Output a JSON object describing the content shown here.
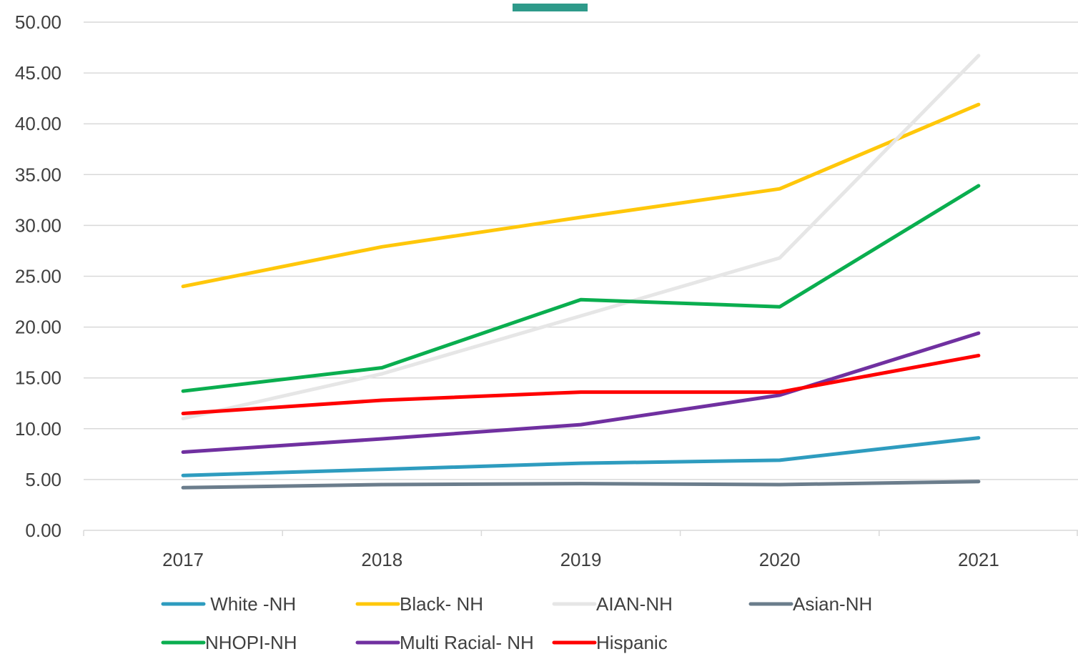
{
  "chart_data": {
    "type": "line",
    "title": "",
    "xlabel": "",
    "ylabel": "",
    "categories": [
      "2017",
      "2018",
      "2019",
      "2020",
      "2021"
    ],
    "ylim": [
      0,
      50
    ],
    "yticks": [
      "0.00",
      "5.00",
      "10.00",
      "15.00",
      "20.00",
      "25.00",
      "30.00",
      "35.00",
      "40.00",
      "45.00",
      "50.00"
    ],
    "grid": "horizontal",
    "legend_position": "bottom",
    "series": [
      {
        "name": " White -NH",
        "color": "#2E9CBF",
        "values": [
          5.4,
          6.0,
          6.6,
          6.9,
          9.1
        ]
      },
      {
        "name": "Black- NH",
        "color": "#FFC70A",
        "values": [
          24.0,
          27.9,
          30.8,
          33.6,
          41.9
        ]
      },
      {
        "name": "AIAN-NH",
        "color": "#E6E6E6",
        "values": [
          11.0,
          15.4,
          21.1,
          26.8,
          46.7
        ]
      },
      {
        "name": "Asian-NH",
        "color": "#6B7D8C",
        "values": [
          4.2,
          4.5,
          4.6,
          4.5,
          4.8
        ]
      },
      {
        "name": "NHOPI-NH",
        "color": "#0AAE4F",
        "values": [
          13.7,
          16.0,
          22.7,
          22.0,
          33.9
        ]
      },
      {
        "name": "Multi Racial- NH",
        "color": "#7030A0",
        "values": [
          7.7,
          9.0,
          10.4,
          13.3,
          19.4
        ]
      },
      {
        "name": "Hispanic",
        "color": "#FF0000",
        "values": [
          11.5,
          12.8,
          13.6,
          13.6,
          17.2
        ]
      }
    ],
    "decoration_color": "#2E9A8A"
  }
}
